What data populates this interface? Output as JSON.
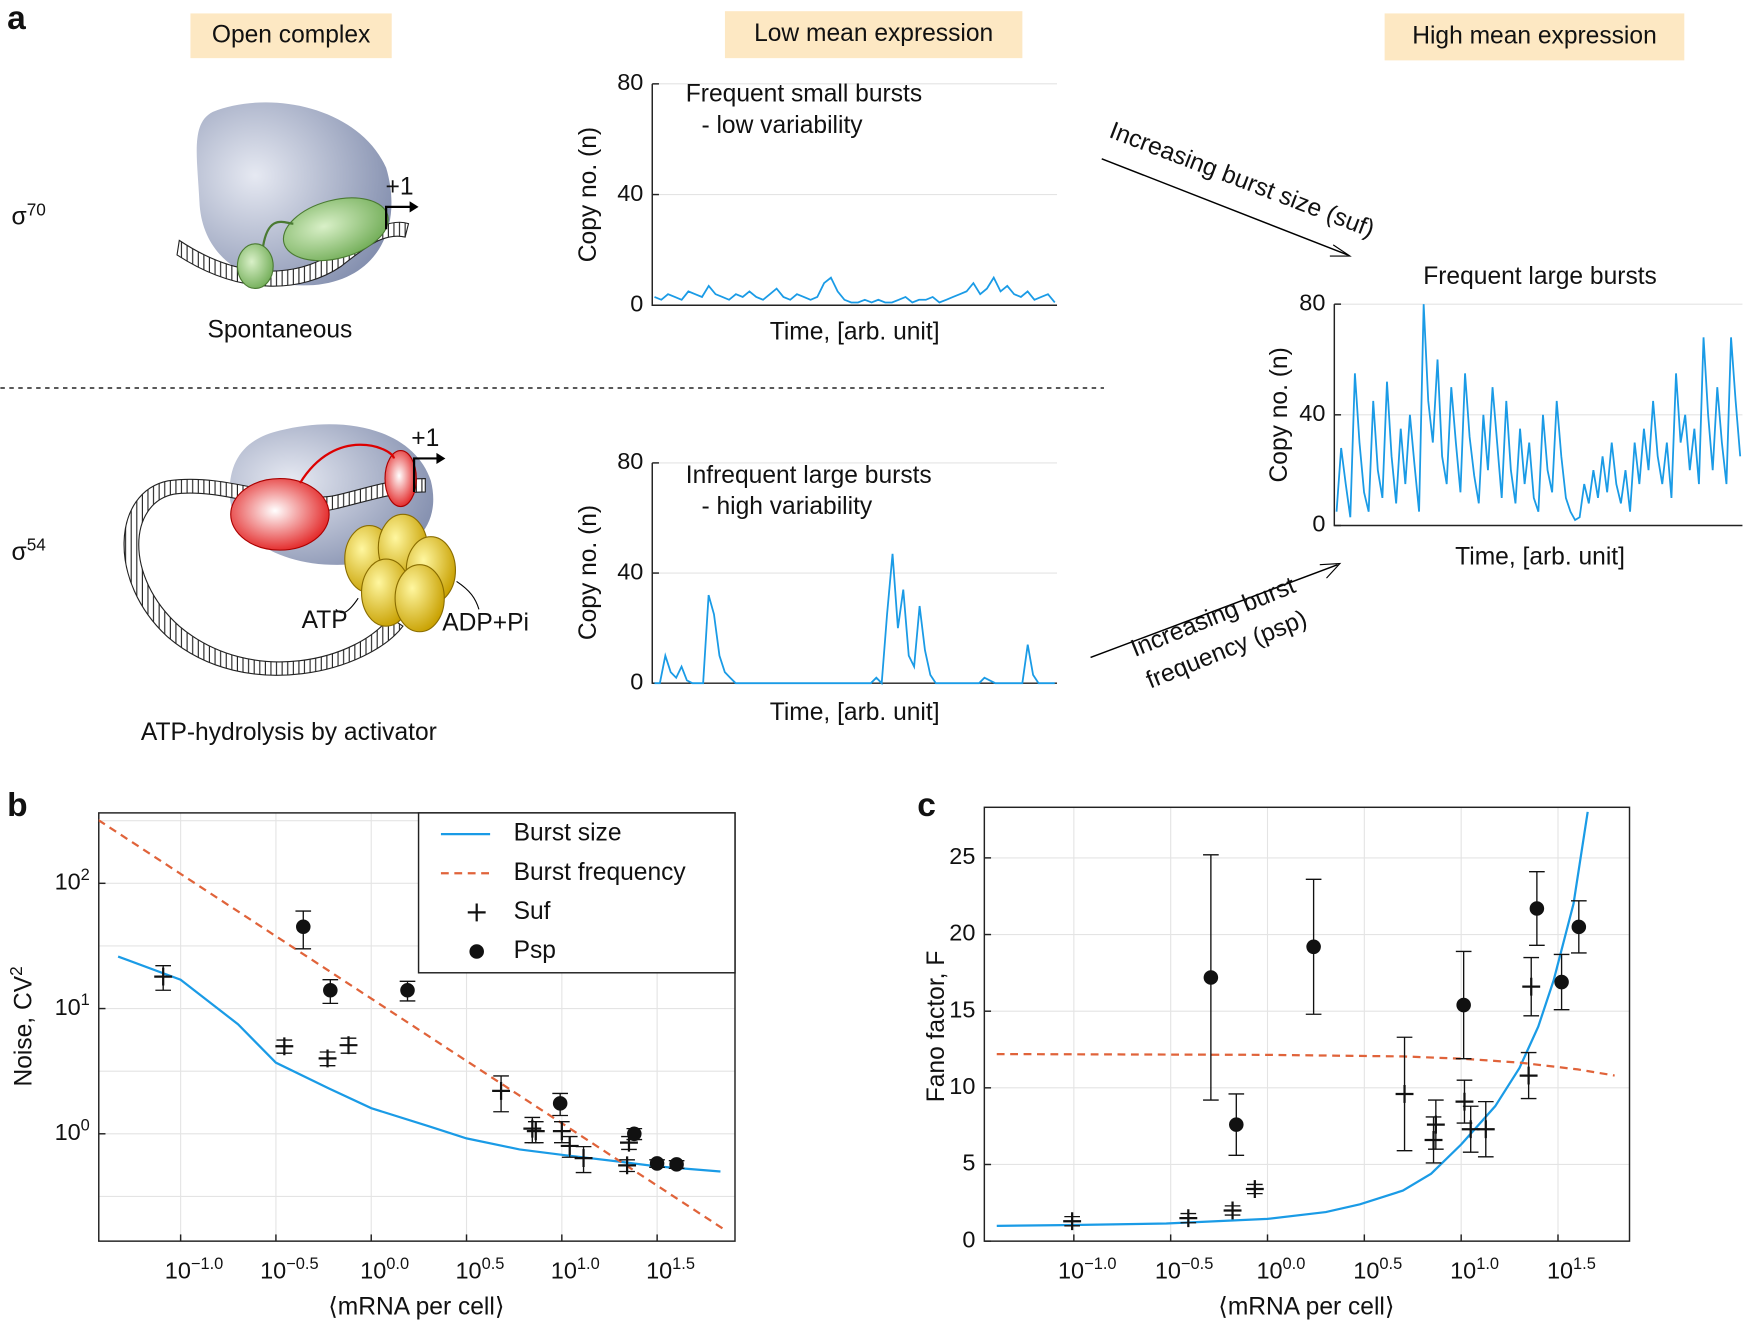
{
  "figure": {
    "panel_labels": [
      "a",
      "b",
      "c"
    ],
    "headers": [
      "Open complex",
      "Low mean expression",
      "High mean expression"
    ],
    "sigma70": "σ^70",
    "sigma54": "σ^54",
    "spontaneous": "Spontaneous",
    "plus1_top": "+1",
    "plus1_bottom": "+1",
    "atp": "ATP",
    "adp": "ADP+Pi",
    "activator": "ATP-hydrolysis by activator",
    "arrow_size": "Increasing burst size (suf)",
    "arrow_freq": [
      "Increasing burst",
      "frequency (psp)"
    ]
  },
  "chart_data": [
    {
      "type": "line",
      "annotations": [
        "Frequent small bursts",
        "- low variability"
      ],
      "ylabel": "Copy no. (n)",
      "xlabel": "Time, [arb. unit]",
      "ylim": [
        0,
        80
      ],
      "yticks": [
        0,
        40,
        80
      ],
      "grid": true,
      "color": "#1a9be6",
      "values": [
        3,
        2,
        4,
        3,
        2,
        5,
        4,
        3,
        7,
        4,
        3,
        2,
        4,
        3,
        5,
        3,
        2,
        4,
        6,
        3,
        2,
        4,
        3,
        2,
        3,
        8,
        10,
        5,
        2,
        1,
        1,
        2,
        1,
        2,
        1,
        1,
        2,
        3,
        1,
        2,
        2,
        3,
        1,
        2,
        3,
        4,
        5,
        8,
        4,
        6,
        10,
        5,
        7,
        4,
        3,
        5,
        2,
        3,
        4,
        1
      ]
    },
    {
      "type": "line",
      "annotations": [
        "Infrequent large bursts",
        "- high variability"
      ],
      "ylabel": "Copy no. (n)",
      "xlabel": "Time, [arb. unit]",
      "ylim": [
        0,
        80
      ],
      "yticks": [
        0,
        40,
        80
      ],
      "grid": true,
      "color": "#1a9be6",
      "values": [
        0,
        0,
        10,
        4,
        2,
        6,
        1,
        0,
        0,
        0,
        32,
        25,
        10,
        4,
        2,
        0,
        0,
        0,
        0,
        0,
        0,
        0,
        0,
        0,
        0,
        0,
        0,
        0,
        0,
        0,
        0,
        0,
        0,
        0,
        0,
        0,
        0,
        0,
        0,
        0,
        0,
        2,
        0,
        25,
        47,
        20,
        34,
        10,
        6,
        28,
        12,
        3,
        0,
        0,
        0,
        0,
        0,
        0,
        0,
        0,
        0,
        2,
        1,
        0,
        0,
        0,
        0,
        0,
        0,
        14,
        3,
        0,
        0,
        0,
        0
      ]
    },
    {
      "type": "line",
      "title": "Frequent large bursts",
      "ylabel": "Copy no. (n)",
      "xlabel": "Time, [arb. unit]",
      "ylim": [
        0,
        80
      ],
      "yticks": [
        0,
        40,
        80
      ],
      "grid": true,
      "color": "#1a9be6",
      "values": [
        5,
        28,
        15,
        3,
        55,
        30,
        12,
        5,
        45,
        20,
        10,
        52,
        25,
        8,
        35,
        15,
        40,
        22,
        5,
        80,
        45,
        30,
        60,
        25,
        15,
        50,
        30,
        12,
        55,
        32,
        18,
        8,
        40,
        20,
        50,
        30,
        10,
        45,
        20,
        8,
        35,
        15,
        30,
        10,
        5,
        40,
        20,
        12,
        45,
        25,
        10,
        5,
        2,
        3,
        15,
        8,
        20,
        10,
        25,
        12,
        30,
        15,
        8,
        20,
        5,
        30,
        15,
        35,
        20,
        45,
        25,
        15,
        30,
        10,
        55,
        30,
        40,
        20,
        35,
        15,
        68,
        40,
        20,
        50,
        30,
        15,
        68,
        45,
        25
      ]
    },
    {
      "type": "scatter",
      "xlog": true,
      "ylog": true,
      "grid": true,
      "legend": "upper right",
      "xlabel": "⟨mRNA per cell⟩",
      "ylabel": "Noise, CV^2",
      "xlim": [
        0.0372,
        81
      ],
      "ylim": [
        0.139,
        365
      ],
      "xticks": [
        {
          "value": 0.1,
          "label": "10^−1.0"
        },
        {
          "value": 0.3162,
          "label": "10^−0.5"
        },
        {
          "value": 1,
          "label": "10^0.0"
        },
        {
          "value": 3.162,
          "label": "10^0.5"
        },
        {
          "value": 10,
          "label": "10^1.0"
        },
        {
          "value": 31.62,
          "label": "10^1.5"
        }
      ],
      "yticks": [
        {
          "value": 1,
          "label": "10^0"
        },
        {
          "value": 10,
          "label": "10^1"
        },
        {
          "value": 100,
          "label": "10^2"
        }
      ],
      "yminor": [
        0.3162,
        3.162,
        31.62,
        316.2
      ],
      "series": [
        {
          "name": "Burst size",
          "kind": "line",
          "color": "#1a9be6",
          "x": [
            0.047,
            0.1,
            0.2,
            0.316,
            0.6,
            1,
            2,
            3.16,
            6,
            10,
            20,
            31.6,
            68
          ],
          "values": [
            26,
            17,
            7.5,
            3.7,
            2.3,
            1.6,
            1.15,
            0.92,
            0.75,
            0.68,
            0.6,
            0.55,
            0.5
          ]
        },
        {
          "name": "Burst frequency",
          "kind": "line",
          "dash": true,
          "color": "#e0633a",
          "x": [
            0.037,
            72
          ],
          "values": [
            320,
            0.17
          ]
        },
        {
          "name": "Suf",
          "kind": "points",
          "marker": "plus",
          "color": "#111",
          "x": [
            0.081,
            0.35,
            0.59,
            0.76,
            4.8,
            7.0,
            7.3,
            10,
            11,
            13,
            22,
            22.5
          ],
          "values": [
            18,
            5.0,
            4.0,
            5.1,
            2.2,
            1.1,
            1.05,
            1.05,
            0.8,
            0.64,
            0.56,
            0.85
          ],
          "errors": [
            4,
            0.6,
            0.5,
            0.7,
            0.7,
            0.25,
            0.2,
            0.2,
            0.15,
            0.15,
            0.06,
            0.1
          ]
        },
        {
          "name": "Psp",
          "kind": "points",
          "marker": "circle",
          "color": "#111",
          "x": [
            0.44,
            0.61,
            1.55,
            9.8,
            24,
            31.6,
            40
          ],
          "values": [
            45,
            14,
            14,
            1.75,
            1.0,
            0.58,
            0.57
          ],
          "errors": [
            15,
            3,
            2.5,
            0.35,
            0.1,
            0.04,
            0.04
          ]
        }
      ]
    },
    {
      "type": "scatter",
      "xlog": true,
      "grid": true,
      "xlabel": "⟨mRNA per cell⟩",
      "ylabel": "Fano factor, F",
      "xlim": [
        0.0345,
        74
      ],
      "ylim": [
        0,
        28.3
      ],
      "xticks": [
        {
          "value": 0.1,
          "label": "10^−1.0"
        },
        {
          "value": 0.3162,
          "label": "10^−0.5"
        },
        {
          "value": 1,
          "label": "10^0.0"
        },
        {
          "value": 3.162,
          "label": "10^0.5"
        },
        {
          "value": 10,
          "label": "10^1.0"
        },
        {
          "value": 31.62,
          "label": "10^1.5"
        }
      ],
      "yticks": [
        0,
        5,
        10,
        15,
        20,
        25
      ],
      "series": [
        {
          "name": "Burst size",
          "kind": "line",
          "color": "#1a9be6",
          "x": [
            0.04,
            0.1,
            0.3,
            1,
            2,
            3,
            5,
            7,
            10,
            15,
            20,
            25,
            30,
            38,
            45
          ],
          "values": [
            1.0,
            1.05,
            1.15,
            1.45,
            1.9,
            2.4,
            3.3,
            4.4,
            6.3,
            8.8,
            11.3,
            14,
            17,
            22,
            28
          ]
        },
        {
          "name": "Burst frequency",
          "kind": "line",
          "dash": true,
          "color": "#e0633a",
          "x": [
            0.04,
            1,
            5,
            10,
            20,
            40,
            62
          ],
          "values": [
            12.2,
            12.15,
            12.05,
            11.9,
            11.65,
            11.2,
            10.8
          ]
        },
        {
          "name": "Suf",
          "kind": "points",
          "marker": "plus",
          "color": "#111",
          "x": [
            0.098,
            0.39,
            0.66,
            0.86,
            5.1,
            7.4,
            7.2,
            10.4,
            11.2,
            13.4,
            22.3,
            23
          ],
          "values": [
            1.3,
            1.5,
            2.0,
            3.4,
            9.6,
            7.6,
            6.6,
            9.1,
            7.3,
            7.3,
            10.8,
            16.6
          ],
          "errors": [
            0.3,
            0.3,
            0.3,
            0.3,
            3.7,
            1.6,
            1.5,
            1.4,
            1.5,
            1.8,
            1.5,
            1.9
          ]
        },
        {
          "name": "Psp",
          "kind": "points",
          "marker": "circle",
          "color": "#111",
          "x": [
            0.51,
            0.69,
            1.73,
            10.3,
            24.6,
            33,
            40.5
          ],
          "values": [
            17.2,
            7.6,
            19.2,
            15.4,
            21.7,
            16.9,
            20.5
          ],
          "errors": [
            8,
            2,
            4.4,
            3.5,
            2.4,
            1.8,
            1.7
          ]
        }
      ]
    }
  ]
}
